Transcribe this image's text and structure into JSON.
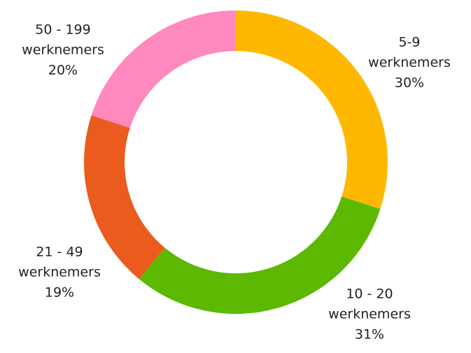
{
  "chart_data": {
    "type": "donut",
    "categories": [
      "5-9 werknemers",
      "10 - 20 werknemers",
      "21 - 49 werknemers",
      "50 - 199 werknemers"
    ],
    "values": [
      30,
      31,
      19,
      20
    ],
    "value_labels": [
      "30%",
      "31%",
      "19%",
      "20%"
    ],
    "colors": [
      "#ffb800",
      "#5cb800",
      "#eb5b1e",
      "#ff88bf"
    ]
  }
}
